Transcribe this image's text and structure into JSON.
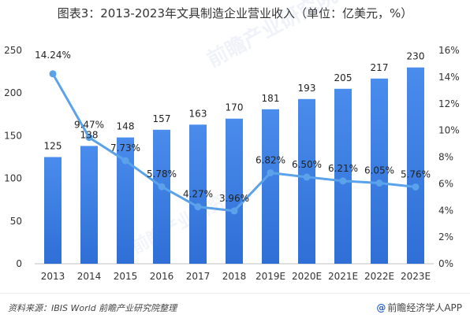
{
  "title": "图表3：2013-2023年文具制造企业营业收入（单位：亿美元，%）",
  "footer": {
    "source": "资料来源：IBIS World  前瞻产业研究院整理",
    "brand": "前瞻经济学人APP",
    "brand_icon": "@"
  },
  "watermark": "前瞻产业研究院",
  "chart_data": {
    "type": "bar",
    "title": "图表3：2013-2023年文具制造企业营业收入（单位：亿美元，%）",
    "categories": [
      "2013",
      "2014",
      "2015",
      "2016",
      "2017",
      "2018",
      "2019E",
      "2020E",
      "2021E",
      "2022E",
      "2023E"
    ],
    "series": [
      {
        "type": "bar",
        "axis": "left",
        "values": [
          125,
          138,
          148,
          157,
          163,
          170,
          181,
          193,
          205,
          217,
          230
        ],
        "labels": [
          "125",
          "138",
          "148",
          "157",
          "163",
          "170",
          "181",
          "193",
          "205",
          "217",
          "230"
        ],
        "color": "#3a7de0"
      },
      {
        "type": "line",
        "axis": "right",
        "values": [
          14.24,
          9.47,
          7.73,
          5.78,
          4.27,
          3.96,
          6.82,
          6.5,
          6.21,
          6.05,
          5.76
        ],
        "labels": [
          "14.24%",
          "9.47%",
          "7.73%",
          "5.78%",
          "4.27%",
          "3.96%",
          "6.82%",
          "6.50%",
          "6.21%",
          "6.05%",
          "5.76%"
        ],
        "color": "#5aa2ea"
      }
    ],
    "y_left": {
      "lim": [
        0,
        250
      ],
      "ticks": [
        "0",
        "50",
        "100",
        "150",
        "200",
        "250"
      ],
      "tick_values": [
        0,
        50,
        100,
        150,
        200,
        250
      ]
    },
    "y_right": {
      "lim": [
        0,
        16
      ],
      "ticks": [
        "0%",
        "2%",
        "4%",
        "6%",
        "8%",
        "10%",
        "12%",
        "14%",
        "16%"
      ],
      "tick_values": [
        0,
        2,
        4,
        6,
        8,
        10,
        12,
        14,
        16
      ]
    },
    "grid": false,
    "legend": "none"
  }
}
